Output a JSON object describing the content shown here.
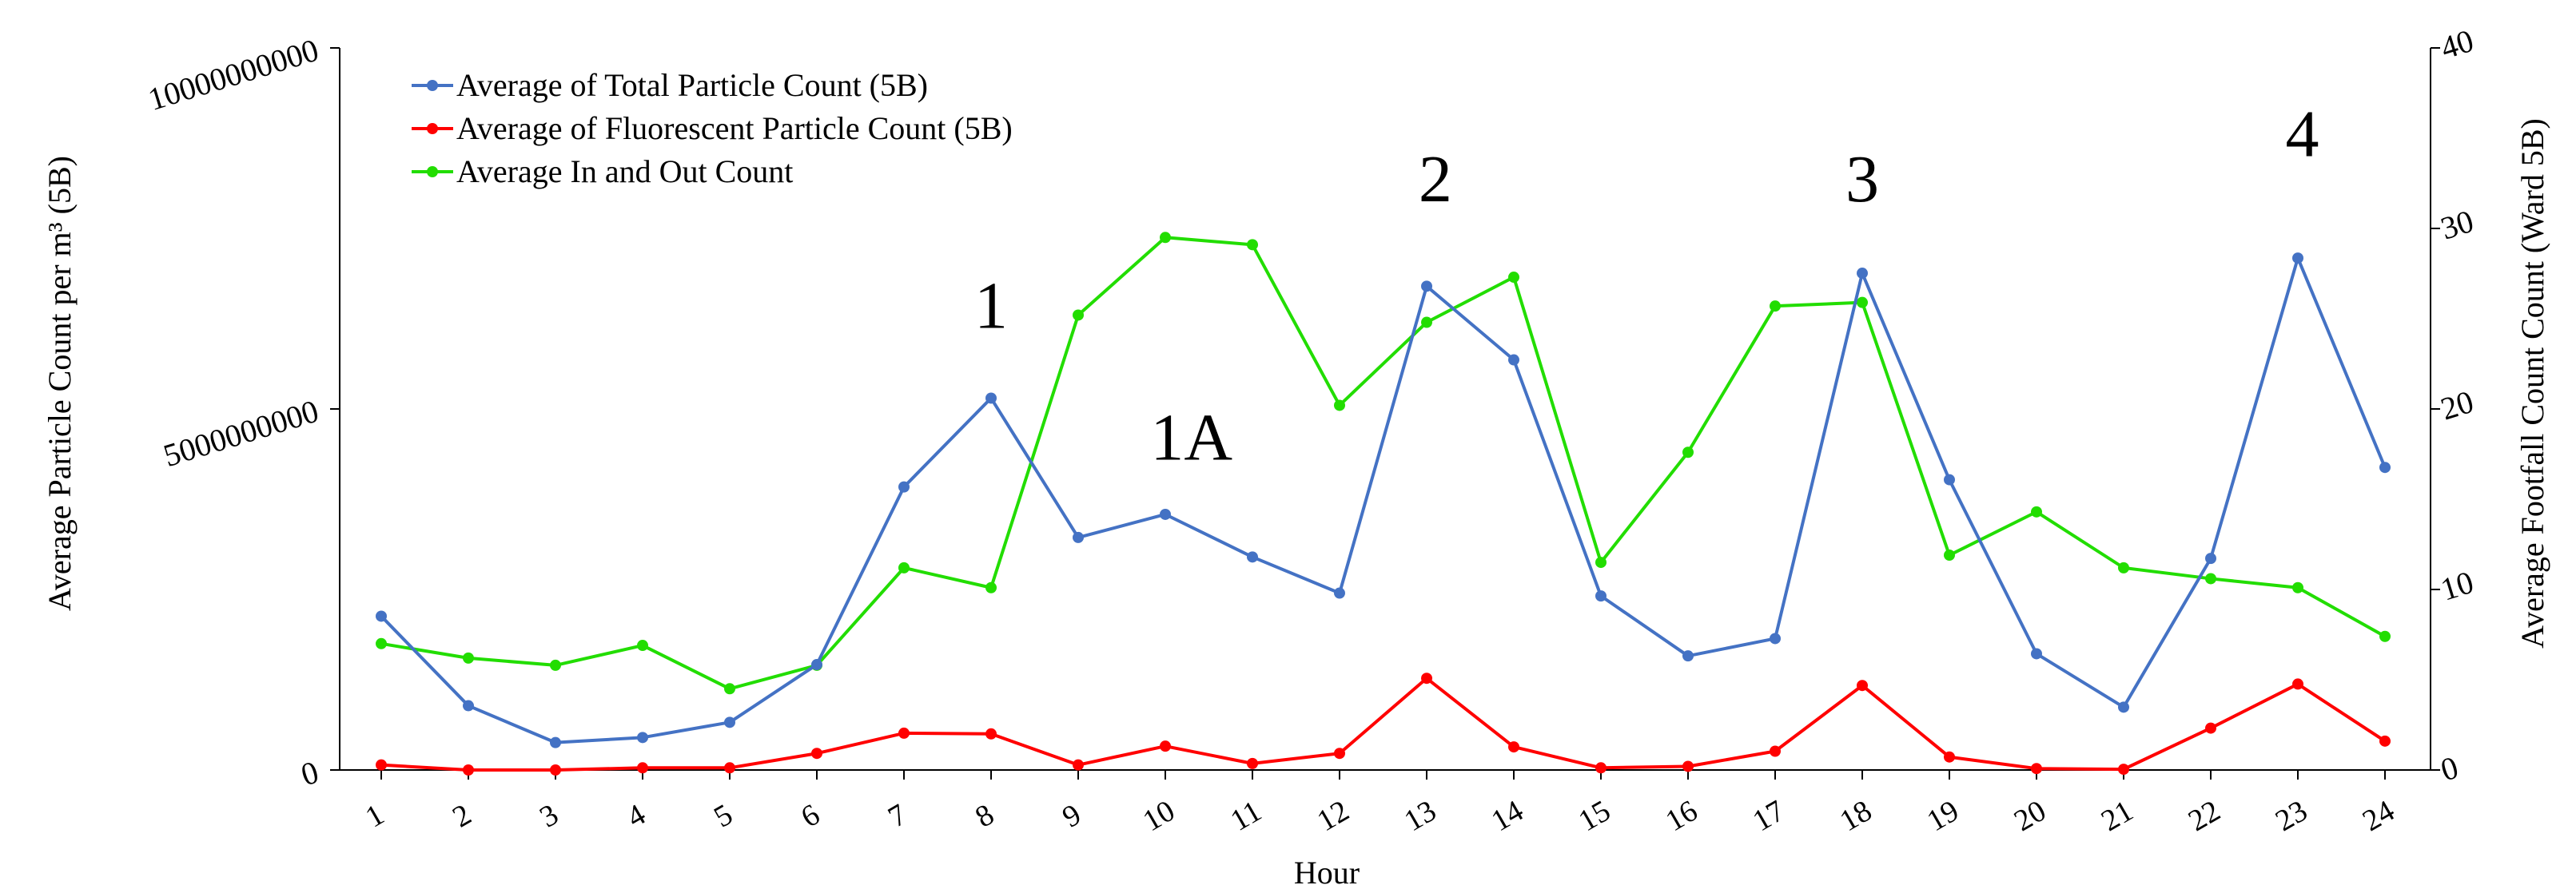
{
  "chart_data": {
    "type": "line",
    "title": "",
    "xlabel": "Hour",
    "ylabel_left": "Average Particle Count per m³ (5B)",
    "ylabel_right": "Average Footfall Count Count (Ward 5B)",
    "x": [
      1,
      2,
      3,
      4,
      5,
      6,
      7,
      8,
      9,
      10,
      11,
      12,
      13,
      14,
      15,
      16,
      17,
      18,
      19,
      20,
      21,
      22,
      23,
      24
    ],
    "x_tick_labels": [
      "1",
      "2",
      "3",
      "4",
      "5",
      "6",
      "7",
      "8",
      "9",
      "10",
      "11",
      "12",
      "13",
      "14",
      "15",
      "16",
      "17",
      "18",
      "19",
      "20",
      "21",
      "22",
      "23",
      "24"
    ],
    "ylim_left": [
      0,
      10000000000
    ],
    "y_left_ticks": [
      0,
      5000000000,
      10000000000
    ],
    "y_left_tick_labels": [
      "0",
      "5000000000",
      "10000000000"
    ],
    "ylim_right": [
      0,
      40
    ],
    "y_right_ticks": [
      0,
      10,
      20,
      30,
      40
    ],
    "y_right_tick_labels": [
      "0",
      "10",
      "20",
      "30",
      "40"
    ],
    "grid": false,
    "legend_position": "top-left",
    "series": [
      {
        "name": "Average of Total Particle Count (5B)",
        "axis": "left",
        "color": "#4472C4",
        "values": [
          2130000000,
          890000000,
          380000000,
          450000000,
          660000000,
          1460000000,
          3920000000,
          5150000000,
          3220000000,
          3540000000,
          2950000000,
          2450000000,
          6700000000,
          5680000000,
          2410000000,
          1580000000,
          1820000000,
          6880000000,
          4020000000,
          1610000000,
          870000000,
          2930000000,
          7090000000,
          4190000000
        ]
      },
      {
        "name": "Average of Fluorescent Particle Count (5B)",
        "axis": "left",
        "color": "#FF0000",
        "values": [
          70000000,
          0,
          0,
          30000000,
          30000000,
          230000000,
          510000000,
          500000000,
          70000000,
          330000000,
          90000000,
          230000000,
          1270000000,
          320000000,
          30000000,
          50000000,
          260000000,
          1170000000,
          180000000,
          20000000,
          10000000,
          580000000,
          1190000000,
          400000000
        ]
      },
      {
        "name": "Average In and Out Count",
        "axis": "right",
        "color": "#22DD00",
        "values": [
          7.0,
          6.2,
          5.8,
          6.9,
          4.5,
          5.8,
          11.2,
          10.1,
          25.2,
          29.5,
          29.1,
          20.2,
          24.8,
          27.3,
          11.5,
          17.6,
          25.7,
          25.9,
          11.9,
          14.3,
          11.2,
          10.6,
          10.1,
          7.4
        ]
      }
    ],
    "annotations": [
      {
        "text": "1",
        "x": 8,
        "y_right": 24.5
      },
      {
        "text": "1A",
        "x": 10.3,
        "y_right": 17.2
      },
      {
        "text": "2",
        "x": 13.1,
        "y_right": 31.5
      },
      {
        "text": "3",
        "x": 18,
        "y_right": 31.5
      },
      {
        "text": "4",
        "x": 23.05,
        "y_right": 34.0
      }
    ]
  }
}
